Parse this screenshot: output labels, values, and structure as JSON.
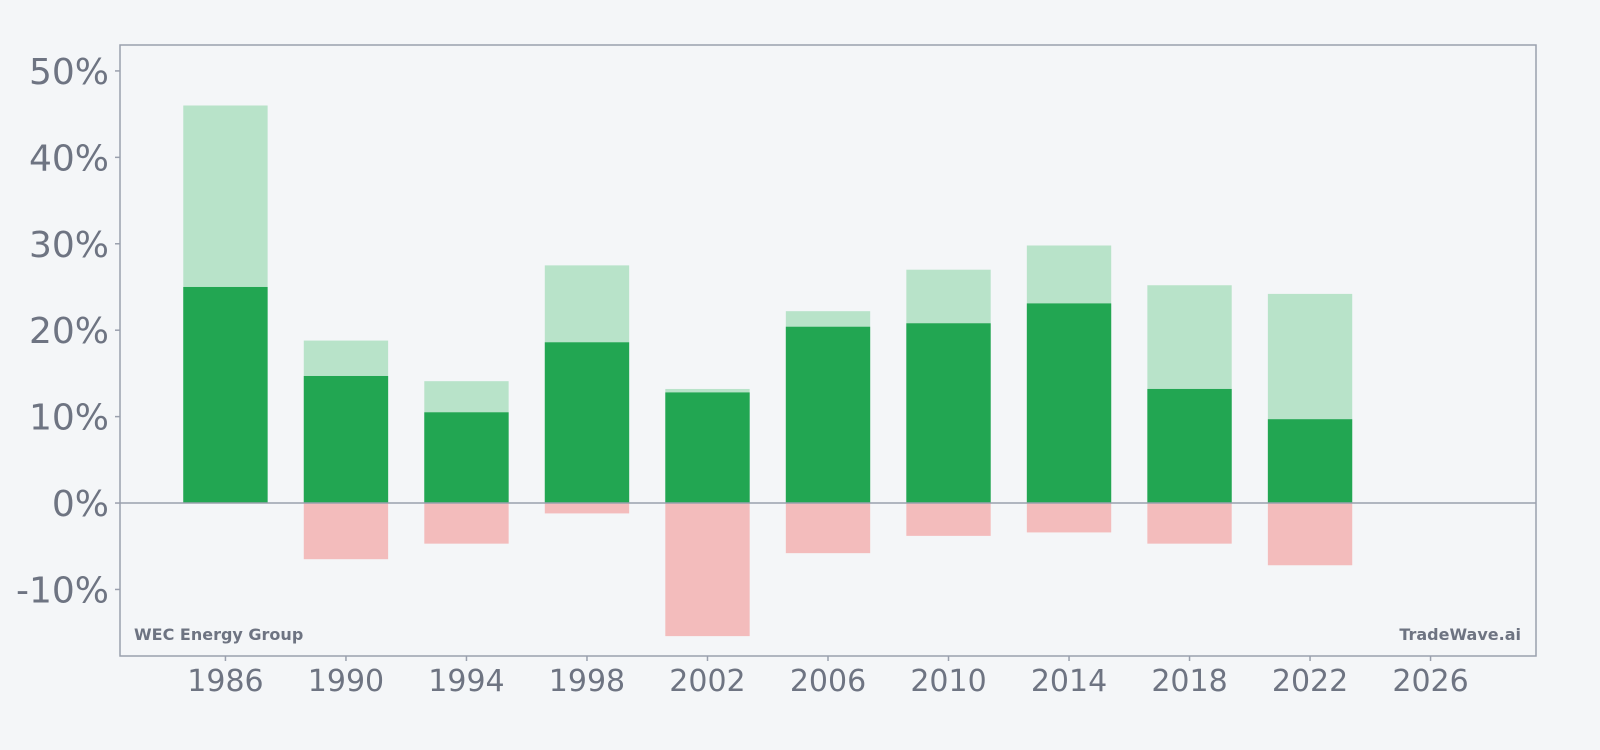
{
  "chart_data": {
    "type": "bar",
    "categories": [
      "1986",
      "1990",
      "1994",
      "1998",
      "2002",
      "2006",
      "2010",
      "2014",
      "2018",
      "2022"
    ],
    "x": [
      1986,
      1990,
      1994,
      1998,
      2002,
      2006,
      2010,
      2014,
      2018,
      2022
    ],
    "series": [
      {
        "values": [
          25.0,
          14.7,
          10.5,
          18.6,
          12.8,
          20.4,
          20.8,
          23.1,
          13.2,
          9.7
        ]
      },
      {
        "values": [
          46.0,
          18.8,
          14.1,
          27.5,
          13.2,
          22.2,
          27.0,
          29.8,
          25.2,
          24.2
        ]
      },
      {
        "values": [
          0.0,
          -6.5,
          -4.7,
          -1.2,
          -15.4,
          -5.8,
          -3.8,
          -3.4,
          -4.7,
          -7.2
        ]
      }
    ],
    "xlim": [
      1982.5,
      2029.5
    ],
    "ylim": [
      -17.7,
      53.0
    ],
    "xticks": [
      "1986",
      "1990",
      "1994",
      "1998",
      "2002",
      "2006",
      "2010",
      "2014",
      "2018",
      "2022",
      "2026"
    ],
    "xtick_values": [
      1986,
      1990,
      1994,
      1998,
      2002,
      2006,
      2010,
      2014,
      2018,
      2022,
      2026
    ],
    "yticks": [
      "50%",
      "40%",
      "30%",
      "20%",
      "10%",
      "0%",
      "-10%"
    ],
    "ytick_values": [
      50,
      40,
      30,
      20,
      10,
      0,
      -10
    ],
    "grid": false,
    "bar_width_years": 2.8,
    "colors": {
      "main": "#22a652",
      "high": "#b8e3c9",
      "low": "#f3bcbc",
      "axis": "#9aa0ad",
      "tick_text": "#6e7482",
      "background": "#f4f6f8"
    }
  },
  "annotations": {
    "company": "WEC Energy Group",
    "watermark": "TradeWave.ai"
  }
}
